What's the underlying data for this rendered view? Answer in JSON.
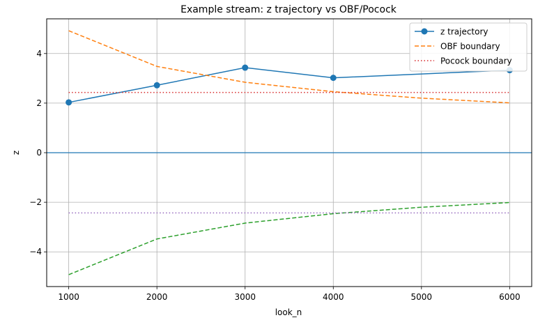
{
  "chart_data": {
    "type": "line",
    "title": "Example stream: z trajectory vs OBF/Pocock",
    "xlabel": "look_n",
    "ylabel": "z",
    "xlim": [
      750,
      6250
    ],
    "ylim": [
      -5.4,
      5.4
    ],
    "x_ticks": [
      1000,
      2000,
      3000,
      4000,
      5000,
      6000
    ],
    "y_ticks": [
      -4,
      -2,
      0,
      2,
      4
    ],
    "y_tick_labels": [
      "−4",
      "−2",
      "0",
      "2",
      "4"
    ],
    "grid": true,
    "legend_position": "top-right",
    "reference_line": {
      "y": 0,
      "color": "#1f77b4"
    },
    "series": [
      {
        "name": "z trajectory",
        "legend": true,
        "style": "solid",
        "marker": "circle",
        "color": "#1f77b4",
        "x": [
          1000,
          2000,
          3000,
          4000,
          6000
        ],
        "values": [
          2.03,
          2.72,
          3.43,
          3.02,
          3.33
        ]
      },
      {
        "name": "OBF boundary",
        "legend": true,
        "style": "dashed",
        "marker": "none",
        "color": "#ff7f0e",
        "x": [
          1000,
          2000,
          3000,
          4000,
          5000,
          6000
        ],
        "values": [
          4.92,
          3.48,
          2.84,
          2.46,
          2.2,
          2.01
        ]
      },
      {
        "name": "Pocock boundary",
        "legend": true,
        "style": "dotted",
        "marker": "none",
        "color": "#d62728",
        "x": [
          1000,
          6000
        ],
        "values": [
          2.43,
          2.43
        ]
      },
      {
        "name": "OBF lower boundary",
        "legend": false,
        "style": "dashed",
        "marker": "none",
        "color": "#2ca02c",
        "x": [
          1000,
          2000,
          3000,
          4000,
          5000,
          6000
        ],
        "values": [
          -4.92,
          -3.48,
          -2.84,
          -2.46,
          -2.2,
          -2.01
        ]
      },
      {
        "name": "Pocock lower boundary",
        "legend": false,
        "style": "dotted",
        "marker": "none",
        "color": "#9467bd",
        "x": [
          1000,
          6000
        ],
        "values": [
          -2.43,
          -2.43
        ]
      }
    ]
  }
}
